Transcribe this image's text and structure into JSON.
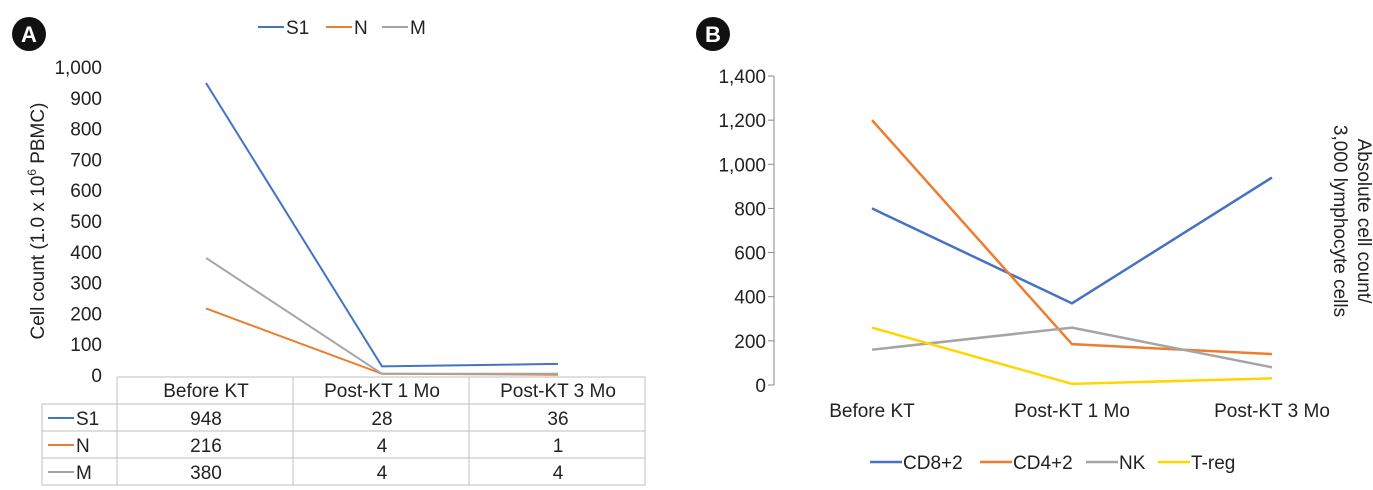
{
  "panels": [
    {
      "badge": "A",
      "chart_data": {
        "type": "line",
        "categories": [
          "Before KT",
          "Post-KT 1 Mo",
          "Post-KT 3 Mo"
        ],
        "series": [
          {
            "name": "S1",
            "color": "#4472C4",
            "values": [
              948,
              28,
              36
            ]
          },
          {
            "name": "N",
            "color": "#ED7D31",
            "values": [
              216,
              4,
              1
            ]
          },
          {
            "name": "M",
            "color": "#A5A5A5",
            "values": [
              380,
              4,
              4
            ]
          }
        ],
        "ylabel_parts": [
          "Cell count (1.0 x 10",
          "6",
          " PBMC)"
        ],
        "yticks": [
          "0",
          "100",
          "200",
          "300",
          "400",
          "500",
          "600",
          "700",
          "800",
          "900",
          "1,000"
        ],
        "ylim": [
          0,
          1000
        ],
        "legend": "top",
        "grid": false,
        "data_table": true,
        "table_rows": [
          {
            "name": "S1",
            "cells": [
              "948",
              "28",
              "36"
            ]
          },
          {
            "name": "N",
            "cells": [
              "216",
              "4",
              "1"
            ]
          },
          {
            "name": "M",
            "cells": [
              "380",
              "4",
              "4"
            ]
          }
        ]
      }
    },
    {
      "badge": "B",
      "chart_data": {
        "type": "line",
        "categories": [
          "Before KT",
          "Post-KT 1 Mo",
          "Post-KT 3 Mo"
        ],
        "series": [
          {
            "name": "CD8+2",
            "color": "#4472C4",
            "values": [
              800,
              370,
              940
            ]
          },
          {
            "name": "CD4+2",
            "color": "#ED7D31",
            "values": [
              1200,
              185,
              140
            ]
          },
          {
            "name": "NK",
            "color": "#A5A5A5",
            "values": [
              160,
              260,
              80
            ]
          },
          {
            "name": "T-reg",
            "color": "#FFD700",
            "values": [
              260,
              5,
              30
            ]
          }
        ],
        "ylabel_lines": [
          "Absolute cell count/",
          "3,000 lymphocyte cells"
        ],
        "yticks": [
          "0",
          "200",
          "400",
          "600",
          "800",
          "1,000",
          "1,200",
          "1,400"
        ],
        "ylim": [
          0,
          1400
        ],
        "legend": "bottom",
        "grid": false
      }
    }
  ]
}
